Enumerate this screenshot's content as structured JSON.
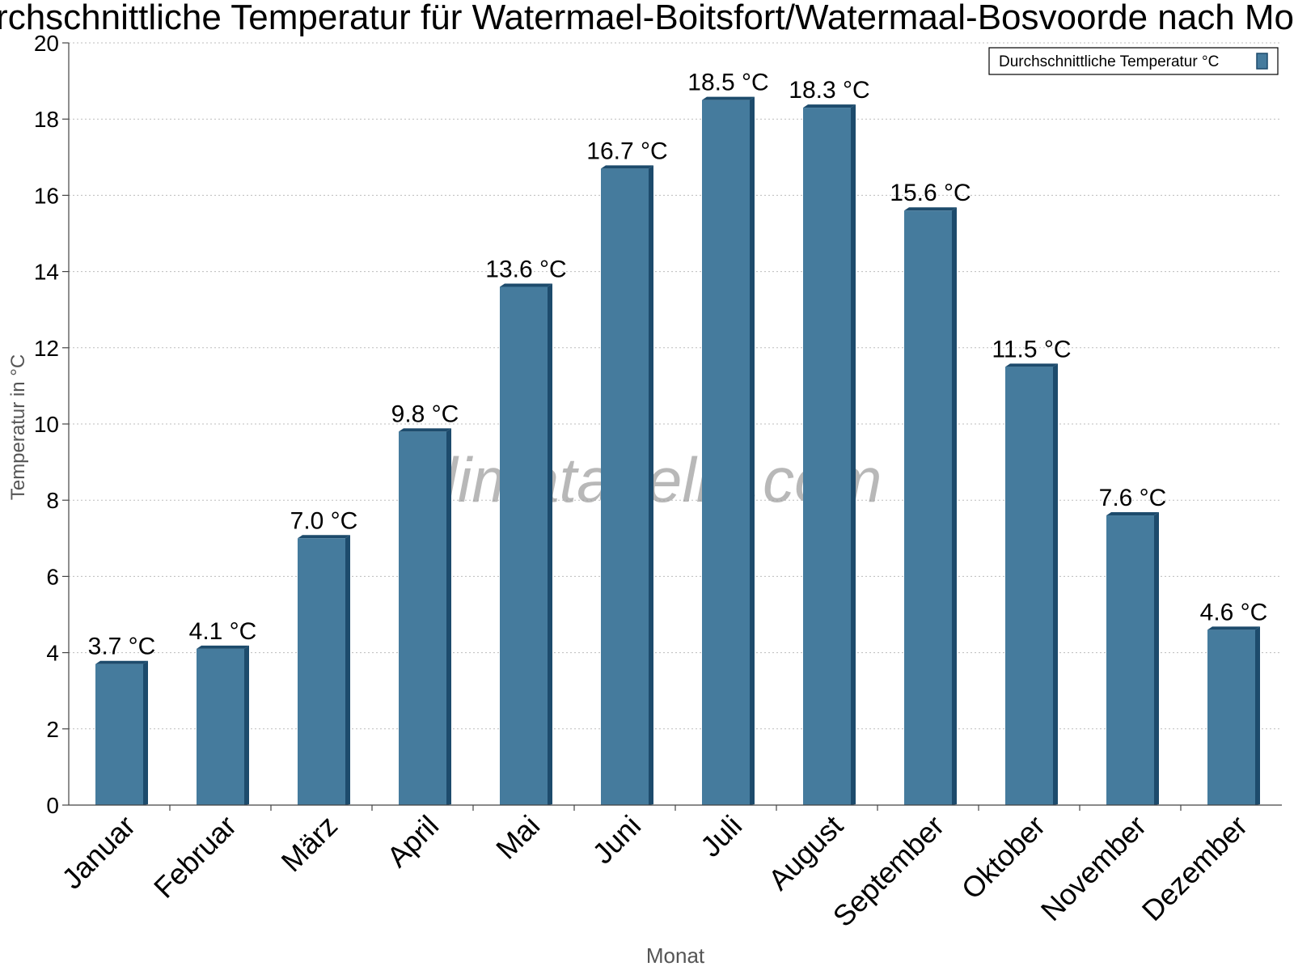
{
  "chart_data": {
    "type": "bar",
    "title": "Durchschnittliche Temperatur für Watermael-Boitsfort/Watermaal-Bosvoorde nach Monat",
    "xlabel": "Monat",
    "ylabel": "Temperatur in °C",
    "ylim": [
      0,
      20
    ],
    "yticks": [
      "0",
      "2",
      "4",
      "6",
      "8",
      "10",
      "12",
      "14",
      "16",
      "18",
      "20"
    ],
    "grid": true,
    "legend_position": "top-right",
    "categories": [
      "Januar",
      "Februar",
      "März",
      "April",
      "Mai",
      "Juni",
      "Juli",
      "August",
      "September",
      "Oktober",
      "November",
      "Dezember"
    ],
    "series": [
      {
        "name": "Durchschnittliche Temperatur °C",
        "values": [
          3.7,
          4.1,
          7.0,
          9.8,
          13.6,
          16.7,
          18.5,
          18.3,
          15.6,
          11.5,
          7.6,
          4.6
        ],
        "labels": [
          "3.7 °C",
          "4.1 °C",
          "7.0 °C",
          "9.8 °C",
          "13.6 °C",
          "16.7 °C",
          "18.5 °C",
          "18.3 °C",
          "15.6 °C",
          "11.5 °C",
          "7.6 °C",
          "4.6 °C"
        ],
        "color": "#457b9d",
        "shade_color": "#1d4b6c"
      }
    ],
    "watermark": "klimatabelle.com"
  }
}
